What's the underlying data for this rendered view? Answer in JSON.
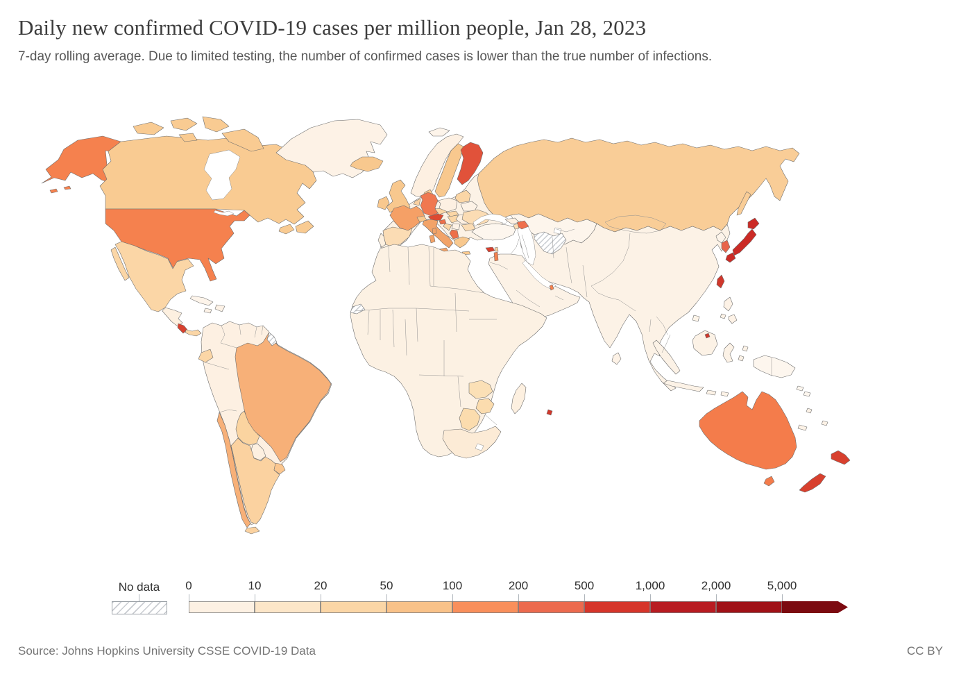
{
  "header": {
    "title": "Daily new confirmed COVID-19 cases per million people, Jan 28, 2023",
    "subtitle": "7-day rolling average. Due to limited testing, the number of confirmed cases is lower than the true number of infections."
  },
  "footer": {
    "source": "Source: Johns Hopkins University CSSE COVID-19 Data",
    "license": "CC BY"
  },
  "legend": {
    "no_data_label": "No data",
    "tick_labels": [
      "0",
      "10",
      "20",
      "50",
      "100",
      "200",
      "500",
      "1,000",
      "2,000",
      "5,000"
    ],
    "bin_colors": [
      "#fdf1e3",
      "#fce6c8",
      "#fbd6a6",
      "#f9c289",
      "#f98f5b",
      "#ec6a4e",
      "#d6352a",
      "#b81c22",
      "#a01117"
    ],
    "arrow_color": "#7c0a10"
  },
  "map": {
    "sea_color": "#ffffff",
    "border_color": "#6e6e6e",
    "fills": {
      "united_states": "#f5814e",
      "alaska": "#f5814e",
      "canada": "#f9cb92",
      "greenland": "#fdf2e6",
      "mexico": "#fbd6a6",
      "central_america": "#fdf0e0",
      "costa_rica": "#d8402e",
      "panama": "#fbd6a6",
      "cuba": "#fdf4ea",
      "hispaniola": "#fdf2e6",
      "jamaica": "#fdf2e6",
      "south_america_base": "#fdf0e2",
      "brazil": "#f7b078",
      "bolivia": "#fbd4a0",
      "paraguay": "#fdf0e0",
      "argentina": "#fbd2a0",
      "chile": "#f7b078",
      "uruguay": "#fbc68e",
      "ecuador": "#fbd6a6",
      "tierra_del_fuego": "#fbd2a0",
      "french_guiana": "hatch",
      "iceland": "#f8c88e",
      "united_kingdom": "#f8c88e",
      "ireland": "#f8c88e",
      "norway": "#fdf0e2",
      "sweden": "#f8c88e",
      "finland": "#e1523a",
      "denmark": "#f8c88e",
      "europe_base": "#fcf2e6",
      "portugal": "#fdf0e0",
      "spain": "#fbdcb4",
      "france": "#f5a066",
      "benelux": "#f9d0a0",
      "germany": "#f07850",
      "switzerland": "#f8c88e",
      "austria": "#dd4a31",
      "czechia": "#fbd6a6",
      "poland": "#fdf0e2",
      "italy": "#f2a368",
      "slovenia": "#ed6f4a",
      "croatia": "#fbd6a6",
      "hungary": "#fbd6a6",
      "slovakia": "#fbd6a6",
      "romania": "#fdf0e2",
      "bulgaria": "#fbdcb4",
      "serbia": "#fdf2e6",
      "montenegro_albania": "#ed6f4a",
      "greece": "#f8c88e",
      "baltics": "#fbd6a6",
      "belarus": "#fdf2e6",
      "ukraine": "#fbdcb4",
      "russia": "#f9cd97",
      "sakhalin": "#f9cd97",
      "svalbard": "#fdf4ea",
      "kazakhstan": "#fdf5ec",
      "turkmenistan": "hatch",
      "asia_base": "#fcf2e6",
      "turkey": "#fdf6ee",
      "georgia": "#fdf0e2",
      "azerbaijan": "#ef6f4c",
      "armenia": "#fbdcb4",
      "cyprus": "#d8402e",
      "israel": "#f5814e",
      "lebanon": "#f9d0a0",
      "arabia": "#fcf2e6",
      "qatar": "#f5814e",
      "north_korea": "#fdf4ea",
      "south_korea": "#e8644a",
      "japan": "#cb2b26",
      "taiwan": "#d0372b",
      "hainan": "#fdf4e8",
      "sri_lanka": "#fdf2e6",
      "philippines": "#fdf2e6",
      "sumatra": "#fcf2e6",
      "java": "#fcf2e6",
      "borneo": "#fcf2e6",
      "sulawesi": "#fcf2e6",
      "lesser_sunda": "#fcf2e6",
      "moluccas": "#fcf2e6",
      "brunei": "#d0372b",
      "new_guinea": "#fdf6ee",
      "australia": "#f47c4b",
      "tasmania": "#f47c4b",
      "new_zealand": "#d8402e",
      "new_caledonia": "#fdf2e6",
      "fiji": "#fdf2e6",
      "solomons": "#fdf6ee",
      "vanuatu": "#fdf2e6",
      "africa": "#fcf1e3",
      "western_sahara": "hatch",
      "madagascar": "#fdf0e0",
      "zambia": "#fbe0b6",
      "zimbabwe": "#fbdcae",
      "botswana": "#fbdcae",
      "south_africa": "#fcebd6",
      "mauritius": "#d0372b"
    }
  },
  "chart_data": {
    "type": "choropleth",
    "title": "Daily new confirmed COVID-19 cases per million people, Jan 28, 2023",
    "unit": "daily new confirmed cases per million people (7-day rolling average)",
    "legend_bins": [
      0,
      10,
      20,
      50,
      100,
      200,
      500,
      1000,
      2000,
      5000
    ],
    "legend_bin_colors": [
      "#fdf1e3",
      "#fce6c8",
      "#fbd6a6",
      "#f9c289",
      "#f98f5b",
      "#ec6a4e",
      "#d6352a",
      "#b81c22",
      "#a01117"
    ],
    "legend_over_color": "#7c0a10",
    "no_data": {
      "label": "No data",
      "regions": [
        "Turkmenistan",
        "Western Sahara",
        "French Guiana"
      ]
    },
    "regions": [
      {
        "name": "United States",
        "band": "100–200"
      },
      {
        "name": "Canada",
        "band": "50–100"
      },
      {
        "name": "Greenland",
        "band": "0–10"
      },
      {
        "name": "Mexico",
        "band": "20–50"
      },
      {
        "name": "Costa Rica",
        "band": "1,000–2,000"
      },
      {
        "name": "Panama",
        "band": "20–50"
      },
      {
        "name": "Brazil",
        "band": "100–200"
      },
      {
        "name": "Chile",
        "band": "100–200"
      },
      {
        "name": "Argentina",
        "band": "20–50"
      },
      {
        "name": "Bolivia",
        "band": "20–50"
      },
      {
        "name": "Peru",
        "band": "0–10"
      },
      {
        "name": "Colombia",
        "band": "0–10"
      },
      {
        "name": "Venezuela",
        "band": "0–10"
      },
      {
        "name": "United Kingdom",
        "band": "50–100"
      },
      {
        "name": "Ireland",
        "band": "50–100"
      },
      {
        "name": "Iceland",
        "band": "50–100"
      },
      {
        "name": "France",
        "band": "100–200"
      },
      {
        "name": "Spain",
        "band": "20–50"
      },
      {
        "name": "Portugal",
        "band": "0–10"
      },
      {
        "name": "Germany",
        "band": "200–500"
      },
      {
        "name": "Austria",
        "band": "500–1,000"
      },
      {
        "name": "Slovenia",
        "band": "200–500"
      },
      {
        "name": "Italy",
        "band": "100–200"
      },
      {
        "name": "Finland",
        "band": "500–1,000"
      },
      {
        "name": "Sweden",
        "band": "50–100"
      },
      {
        "name": "Norway",
        "band": "0–10"
      },
      {
        "name": "Poland",
        "band": "0–10"
      },
      {
        "name": "Ukraine",
        "band": "10–20"
      },
      {
        "name": "Russia",
        "band": "50–100"
      },
      {
        "name": "Turkey",
        "band": "0–10"
      },
      {
        "name": "Azerbaijan",
        "band": "200–500"
      },
      {
        "name": "Cyprus",
        "band": "1,000–2,000"
      },
      {
        "name": "Israel",
        "band": "200–500"
      },
      {
        "name": "Saudi Arabia",
        "band": "0–10"
      },
      {
        "name": "Iran",
        "band": "0–10"
      },
      {
        "name": "Kazakhstan",
        "band": "0–10"
      },
      {
        "name": "India",
        "band": "0–10"
      },
      {
        "name": "China",
        "band": "0–10"
      },
      {
        "name": "Mongolia",
        "band": "0–10"
      },
      {
        "name": "Japan",
        "band": "1,000–2,000"
      },
      {
        "name": "South Korea",
        "band": "500–1,000"
      },
      {
        "name": "Taiwan",
        "band": "1,000–2,000"
      },
      {
        "name": "Philippines",
        "band": "0–10"
      },
      {
        "name": "Indonesia",
        "band": "0–10"
      },
      {
        "name": "Brunei",
        "band": "1,000–2,000"
      },
      {
        "name": "Australia",
        "band": "200–500"
      },
      {
        "name": "New Zealand",
        "band": "500–1,000"
      },
      {
        "name": "South Africa",
        "band": "10–20"
      },
      {
        "name": "Zambia",
        "band": "10–20"
      },
      {
        "name": "Zimbabwe",
        "band": "10–20"
      },
      {
        "name": "Botswana",
        "band": "10–20"
      },
      {
        "name": "Most of Africa",
        "band": "0–10"
      },
      {
        "name": "Mauritius",
        "band": "1,000–2,000"
      }
    ]
  }
}
